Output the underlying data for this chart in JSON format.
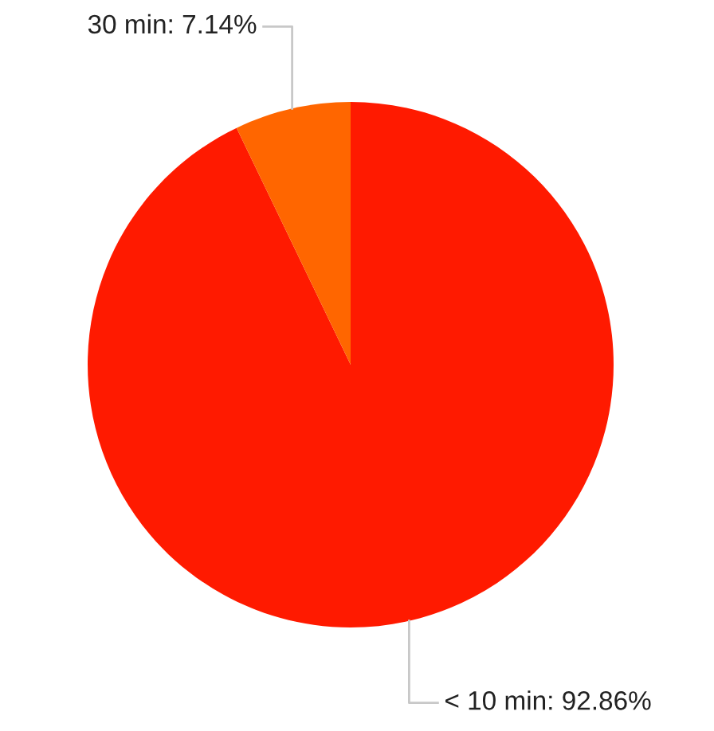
{
  "chart_data": {
    "type": "pie",
    "categories": [
      "< 10 min",
      "30 min"
    ],
    "values": [
      92.86,
      7.14
    ],
    "colors": [
      "#ff1a00",
      "#ff6600"
    ],
    "value_labels": [
      "92.86%",
      "7.14%"
    ]
  }
}
